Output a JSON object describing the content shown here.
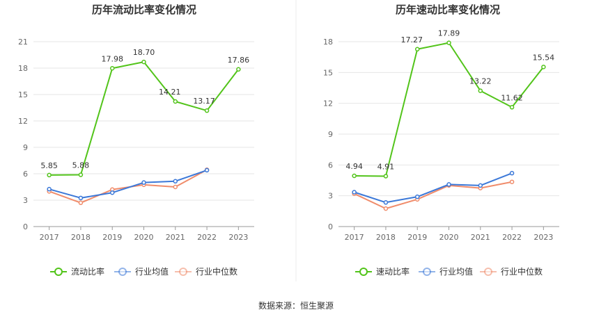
{
  "source": "数据来源：恒生聚源",
  "chart_data": [
    {
      "type": "line",
      "title": "历年流动比率变化情况",
      "categories": [
        "2017",
        "2018",
        "2019",
        "2020",
        "2021",
        "2022",
        "2023"
      ],
      "ylim": [
        0,
        21
      ],
      "yticks": [
        "0",
        "3",
        "6",
        "9",
        "12",
        "15",
        "18",
        "21"
      ],
      "grid": true,
      "legend_position": "bottom",
      "series": [
        {
          "name": "流动比率",
          "color": "#52c41a",
          "values": [
            5.85,
            5.88,
            17.98,
            18.7,
            14.21,
            13.17,
            17.86
          ],
          "labels": [
            "5.85",
            "5.88",
            "17.98",
            "18.70",
            "14.21",
            "13.17",
            "17.86"
          ]
        },
        {
          "name": "行业均值",
          "color": "#3b78d8",
          "values": [
            4.25,
            3.25,
            3.85,
            5.0,
            5.15,
            6.4,
            null
          ]
        },
        {
          "name": "行业中位数",
          "color": "#f08c6b",
          "values": [
            4.0,
            2.7,
            4.2,
            4.75,
            4.5,
            6.45,
            null
          ]
        }
      ]
    },
    {
      "type": "line",
      "title": "历年速动比率变化情况",
      "categories": [
        "2017",
        "2018",
        "2019",
        "2020",
        "2021",
        "2022",
        "2023"
      ],
      "ylim": [
        0,
        18
      ],
      "yticks": [
        "0",
        "3",
        "6",
        "9",
        "12",
        "15",
        "18"
      ],
      "grid": true,
      "legend_position": "bottom",
      "series": [
        {
          "name": "速动比率",
          "color": "#52c41a",
          "values": [
            4.94,
            4.91,
            17.27,
            17.89,
            13.22,
            11.62,
            15.54
          ],
          "labels": [
            "4.94",
            "4.91",
            "17.27",
            "17.89",
            "13.22",
            "11.62",
            "15.54"
          ]
        },
        {
          "name": "行业均值",
          "color": "#3b78d8",
          "values": [
            3.35,
            2.35,
            2.9,
            4.1,
            4.0,
            5.2,
            null
          ]
        },
        {
          "name": "行业中位数",
          "color": "#f08c6b",
          "values": [
            3.2,
            1.75,
            2.65,
            4.0,
            3.75,
            4.35,
            null
          ]
        }
      ]
    }
  ]
}
